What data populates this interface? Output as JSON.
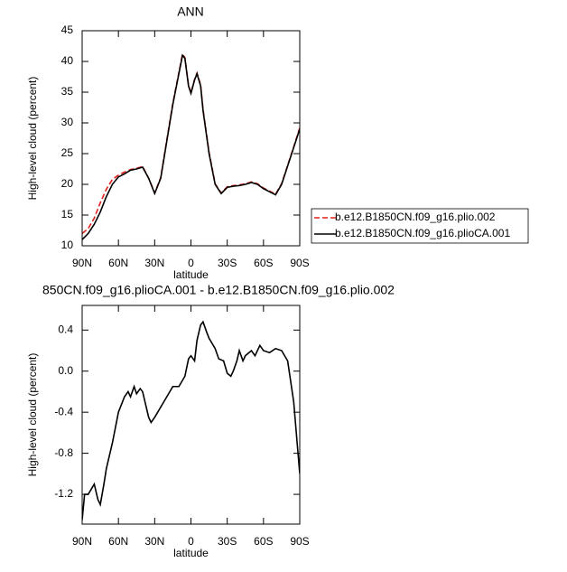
{
  "chart_data": [
    {
      "type": "line",
      "title": "ANN",
      "y_label": "High-level cloud (percent)",
      "x_label": "latitude",
      "x": [
        90,
        85,
        80,
        75,
        70,
        65,
        60,
        55,
        50,
        45,
        40,
        35,
        30,
        25,
        20,
        15,
        10,
        7,
        5,
        2,
        0,
        -3,
        -5,
        -8,
        -10,
        -15,
        -20,
        -25,
        -30,
        -35,
        -40,
        -45,
        -50,
        -55,
        -60,
        -65,
        -70,
        -75,
        -80,
        -85,
        -90
      ],
      "series": [
        {
          "name": "b.e12.B1850CN.f09_g16.plio.002",
          "color": "#e0201b",
          "dash": true,
          "values": [
            12.0,
            12.8,
            14.5,
            17.0,
            19.2,
            20.8,
            21.5,
            22.0,
            22.4,
            22.6,
            22.9,
            21.0,
            18.6,
            21.1,
            27.2,
            33.2,
            38.2,
            41.2,
            40.6,
            36.1,
            34.9,
            37.1,
            38.1,
            36.2,
            32.2,
            25.2,
            20.1,
            18.6,
            19.6,
            19.8,
            19.9,
            20.1,
            20.4,
            20.1,
            19.4,
            18.9,
            18.4,
            20.1,
            23.1,
            26.1,
            29.2
          ]
        },
        {
          "name": "b.e12.B1850CN.f09_g16.plioCA.001",
          "color": "#000000",
          "dash": false,
          "values": [
            11.0,
            12.0,
            13.5,
            15.5,
            18.0,
            20.0,
            21.2,
            21.7,
            22.3,
            22.5,
            22.8,
            21.0,
            18.5,
            21.0,
            27.0,
            33.0,
            38.0,
            41.0,
            40.5,
            36.0,
            34.8,
            37.0,
            38.0,
            36.0,
            32.0,
            25.0,
            20.0,
            18.5,
            19.5,
            19.7,
            19.8,
            20.0,
            20.3,
            20.0,
            19.3,
            18.8,
            18.3,
            20.0,
            23.0,
            26.0,
            29.0
          ]
        }
      ],
      "xlim": [
        90,
        -90
      ],
      "xticks": [
        {
          "value": 90,
          "label": "90N"
        },
        {
          "value": 60,
          "label": "60N"
        },
        {
          "value": 30,
          "label": "30N"
        },
        0,
        {
          "value": -30,
          "label": "30S"
        },
        {
          "value": -60,
          "label": "60S"
        },
        {
          "value": -90,
          "label": "90S"
        }
      ],
      "ylim": [
        10,
        45
      ],
      "yticks": [
        10,
        15,
        20,
        25,
        30,
        35,
        40,
        45
      ],
      "legend": "right"
    },
    {
      "type": "line",
      "title": "850CN.f09_g16.plioCA.001 - b.e12.B1850CN.f09_g16.plio.002",
      "y_label": "High-level cloud (percent)",
      "x_label": "latitude",
      "x": [
        90,
        88,
        85,
        80,
        77,
        75,
        72,
        70,
        65,
        60,
        55,
        52,
        50,
        47,
        45,
        42,
        40,
        37,
        35,
        33,
        30,
        25,
        20,
        15,
        10,
        5,
        2,
        0,
        -3,
        -5,
        -8,
        -10,
        -13,
        -15,
        -20,
        -23,
        -27,
        -30,
        -33,
        -35,
        -38,
        -40,
        -43,
        -45,
        -50,
        -53,
        -57,
        -60,
        -65,
        -70,
        -75,
        -80,
        -85,
        -90
      ],
      "series": [
        {
          "color": "#000000",
          "dash": false,
          "values": [
            -1.45,
            -1.2,
            -1.2,
            -1.1,
            -1.25,
            -1.3,
            -1.1,
            -0.95,
            -0.7,
            -0.4,
            -0.25,
            -0.2,
            -0.25,
            -0.15,
            -0.22,
            -0.17,
            -0.2,
            -0.35,
            -0.45,
            -0.5,
            -0.45,
            -0.35,
            -0.25,
            -0.15,
            -0.15,
            -0.05,
            0.12,
            0.15,
            0.1,
            0.3,
            0.45,
            0.48,
            0.38,
            0.32,
            0.22,
            0.12,
            0.1,
            -0.02,
            -0.05,
            0.0,
            0.1,
            0.2,
            0.1,
            0.15,
            0.2,
            0.15,
            0.25,
            0.2,
            0.18,
            0.22,
            0.2,
            0.1,
            -0.3,
            -1.0
          ]
        }
      ],
      "xlim": [
        90,
        -90
      ],
      "xticks": [
        {
          "value": 90,
          "label": "90N"
        },
        {
          "value": 60,
          "label": "60N"
        },
        {
          "value": 30,
          "label": "30N"
        },
        0,
        {
          "value": -30,
          "label": "30S"
        },
        {
          "value": -60,
          "label": "60S"
        },
        {
          "value": -90,
          "label": "90S"
        }
      ],
      "ylim": [
        -1.49,
        0.64
      ],
      "yticks": [
        -1.2,
        -0.8,
        -0.4,
        {
          "value": 0,
          "label": "0.0"
        },
        0.4
      ]
    }
  ]
}
